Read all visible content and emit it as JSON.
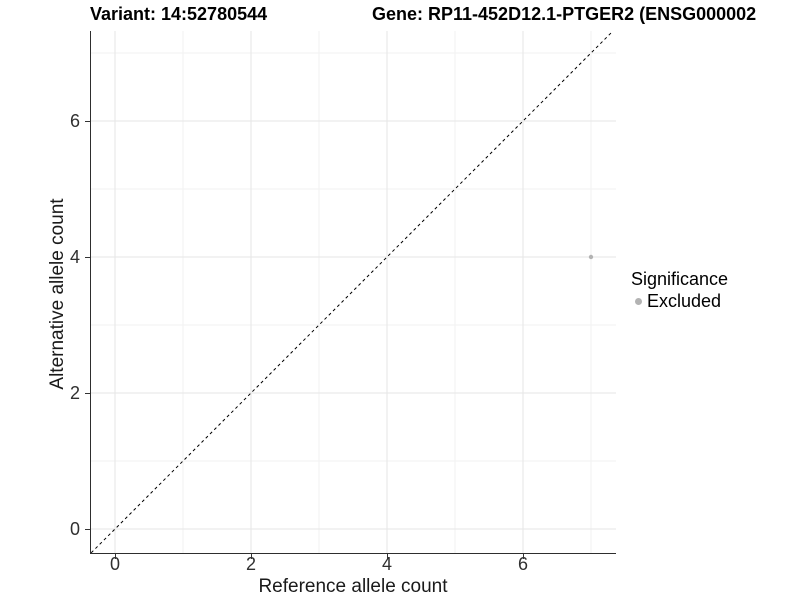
{
  "titles": {
    "variant": "Variant: 14:52780544",
    "gene": "Gene: RP11-452D12.1-PTGER2 (ENSG000002"
  },
  "axes": {
    "x": {
      "label": "Reference allele count",
      "tick_labels": [
        "0",
        "2",
        "4",
        "6"
      ]
    },
    "y": {
      "label": "Alternative allele count",
      "tick_labels": [
        "0",
        "2",
        "4",
        "6"
      ]
    }
  },
  "legend": {
    "title": "Significance",
    "items": [
      {
        "label": "Excluded",
        "color": "#b3b3b3"
      }
    ]
  },
  "chart_data": {
    "type": "scatter",
    "title": "Variant: 14:52780544  /  Gene: RP11-452D12.1-PTGER2 (ENSG000002",
    "xlabel": "Reference allele count",
    "ylabel": "Alternative allele count",
    "xlim": [
      -0.35,
      7.37
    ],
    "ylim": [
      -0.35,
      7.32
    ],
    "xticks": [
      0,
      2,
      4,
      6
    ],
    "yticks": [
      0,
      2,
      4,
      6
    ],
    "x_minor_gridlines": [
      1,
      3,
      5,
      7
    ],
    "y_minor_gridlines": [
      1,
      3,
      5,
      7
    ],
    "grid": true,
    "legend_position": "right",
    "series": [
      {
        "name": "Excluded",
        "color": "#b3b3b3",
        "points": [
          [
            7,
            4
          ]
        ]
      }
    ],
    "reference_line": {
      "kind": "identity y=x",
      "style": "dashed",
      "color": "#000000"
    },
    "style": {
      "major_grid_color": "#e6e6e6",
      "minor_grid_color": "#f2f2f2",
      "axis_line_color": "#2e2e2e",
      "background": "#ffffff"
    }
  }
}
